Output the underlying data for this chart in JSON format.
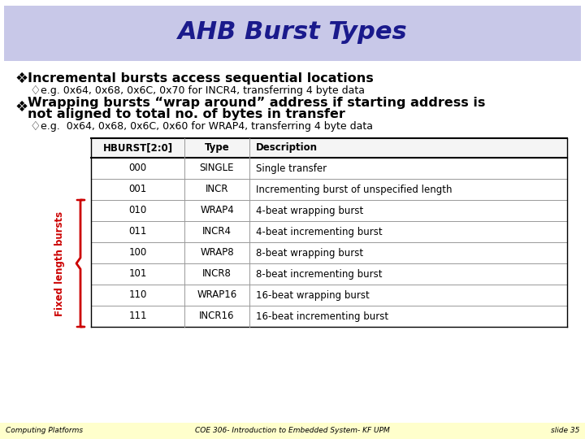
{
  "title": "AHB Burst Types",
  "title_color": "#1a1a8c",
  "title_bg": "#c8c8e8",
  "bg_color": "#f0f0f0",
  "slide_bg": "#ffffff",
  "footer_bg": "#ffffcc",
  "bullet1": "Incremental bursts access sequential locations",
  "sub1": "e.g. 0x64, 0x68, 0x6C, 0x70 for INCR4, transferring 4 byte data",
  "bullet2_line1": "Wrapping bursts “wrap around” address if starting address is",
  "bullet2_line2": "not aligned to total no. of bytes in transfer",
  "sub2": "e.g.  0x64, 0x68, 0x6C, 0x60 for WRAP4, transferring 4 byte data",
  "table_headers": [
    "HBURST[2:0]",
    "Type",
    "Description"
  ],
  "table_rows": [
    [
      "000",
      "SINGLE",
      "Single transfer"
    ],
    [
      "001",
      "INCR",
      "Incrementing burst of unspecified length"
    ],
    [
      "010",
      "WRAP4",
      "4-beat wrapping burst"
    ],
    [
      "011",
      "INCR4",
      "4-beat incrementing burst"
    ],
    [
      "100",
      "WRAP8",
      "8-beat wrapping burst"
    ],
    [
      "101",
      "INCR8",
      "8-beat incrementing burst"
    ],
    [
      "110",
      "WRAP16",
      "16-beat wrapping burst"
    ],
    [
      "111",
      "INCR16",
      "16-beat incrementing burst"
    ]
  ],
  "fixed_label": "Fixed length bursts",
  "fixed_label_color": "#cc0000",
  "footer_left": "Computing Platforms",
  "footer_center": "COE 306- Introduction to Embedded System- KF UPM",
  "footer_right": "slide 35"
}
